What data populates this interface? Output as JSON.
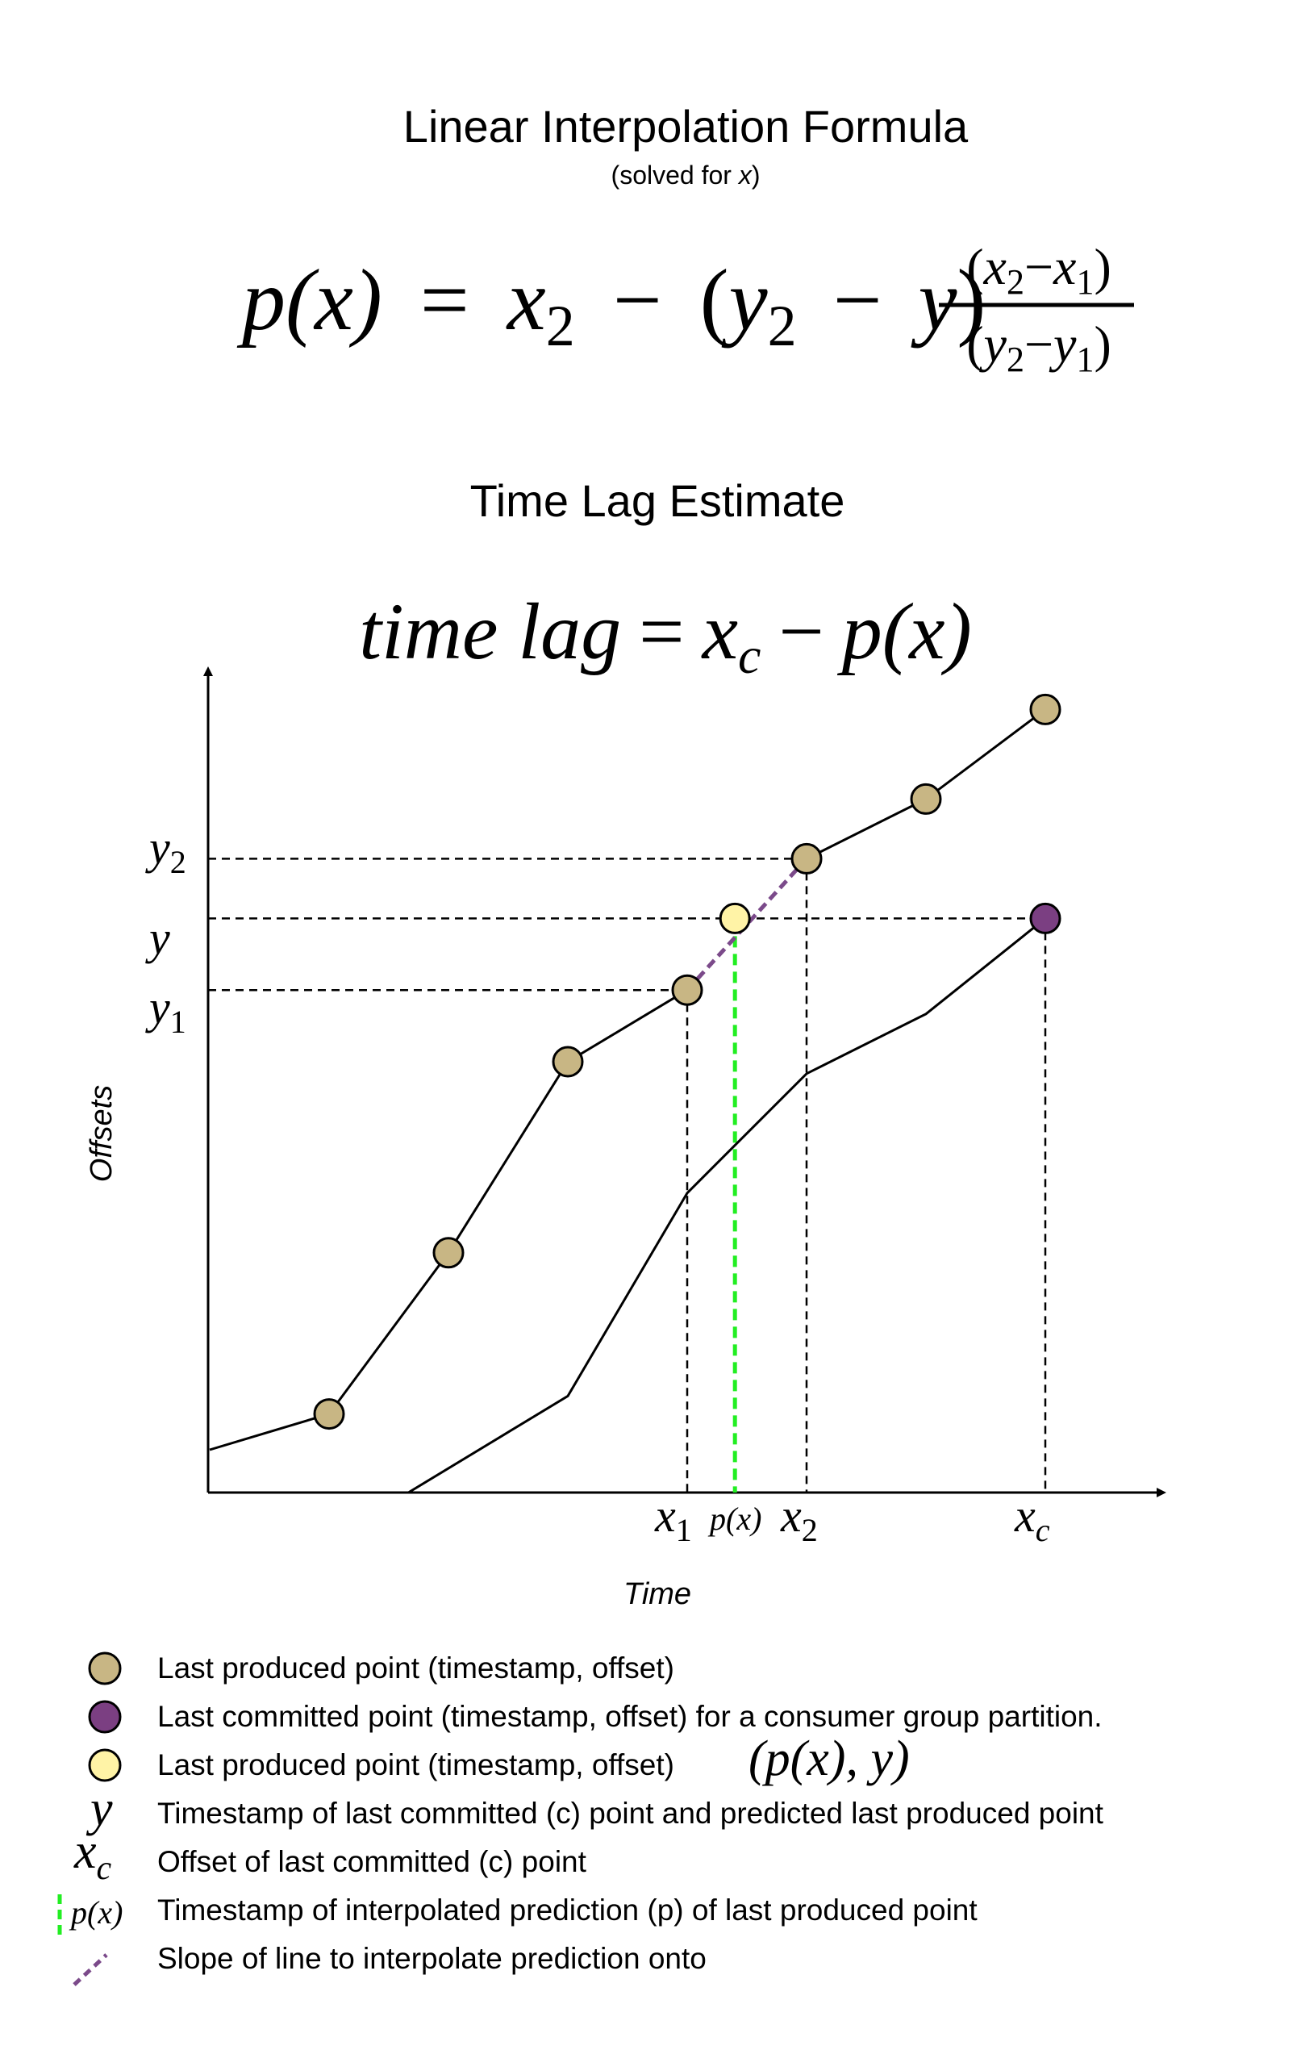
{
  "header": {
    "title": "Linear Interpolation Formula",
    "subtitle_prefix": "(solved for ",
    "subtitle_var": "x",
    "subtitle_suffix": ")"
  },
  "formula": {
    "lhs": "p(x)",
    "eq": "=",
    "x": "x",
    "y": "y",
    "sub2": "2",
    "sub1": "1",
    "minus": "−",
    "open": "(",
    "close": ")"
  },
  "time_lag": {
    "heading": "Time Lag Estimate",
    "lhs": "time lag",
    "eq": "=",
    "xc_base": "x",
    "xc_sub": "c",
    "minus": "−",
    "rhs": "p(x)"
  },
  "axes": {
    "xlabel": "Time",
    "ylabel": "Offsets",
    "x_ticks": {
      "x1": "x",
      "x1_sub": "1",
      "px": "p(x)",
      "x2": "x",
      "x2_sub": "2",
      "xc": "x",
      "xc_sub": "c"
    },
    "y_ticks": {
      "y2": "y",
      "y2_sub": "2",
      "y": "y",
      "y1": "y",
      "y1_sub": "1"
    }
  },
  "colors": {
    "produced_point": "#c8b684",
    "committed_point": "#7b3f82",
    "predicted_point": "#fff3a6",
    "prediction_line": "#22ee22",
    "slope_line": "#7b4a8a",
    "line": "#000000"
  },
  "chart_data": {
    "type": "line",
    "note_units": "unitless diagram coordinates",
    "series": [
      {
        "name": "produced",
        "x": [
          0,
          1,
          2,
          3,
          4,
          5,
          6,
          7
        ],
        "y": [
          0.5,
          1.1,
          3.8,
          7.0,
          8.2,
          10.4,
          11.4,
          12.9
        ]
      },
      {
        "name": "committed",
        "x": [
          1.1,
          3,
          4,
          5,
          6,
          7
        ],
        "y": [
          -0.9,
          1.4,
          4.8,
          6.8,
          7.8,
          9.4
        ]
      }
    ],
    "markers": {
      "produced_points_x": [
        1,
        2,
        3,
        4,
        5,
        6,
        7
      ],
      "x1": 4,
      "x2": 5,
      "px": 4.4,
      "xc": 7,
      "y1": 8.2,
      "y2": 10.4,
      "y": 9.4
    }
  },
  "legend": [
    {
      "symbol": "produced-circle",
      "text": "Last produced point (timestamp, offset)"
    },
    {
      "symbol": "committed-circle",
      "text": "Last committed point (timestamp, offset) for a consumer group partition."
    },
    {
      "symbol": "predicted-circle",
      "text": "Last produced point (timestamp, offset)",
      "math": "(p(x), y)"
    },
    {
      "symbol": "y-glyph",
      "glyph": "y",
      "text": "Timestamp of last committed (c) point and predicted last produced point"
    },
    {
      "symbol": "xc-glyph",
      "glyph": "x",
      "glyph_sub": "c",
      "text": "Offset of last committed (c) point"
    },
    {
      "symbol": "px-glyph",
      "glyph": "p(x)",
      "text": "Timestamp of interpolated prediction (p) of last produced point"
    },
    {
      "symbol": "slope-dash",
      "text": "Slope of line to interpolate prediction onto"
    }
  ]
}
